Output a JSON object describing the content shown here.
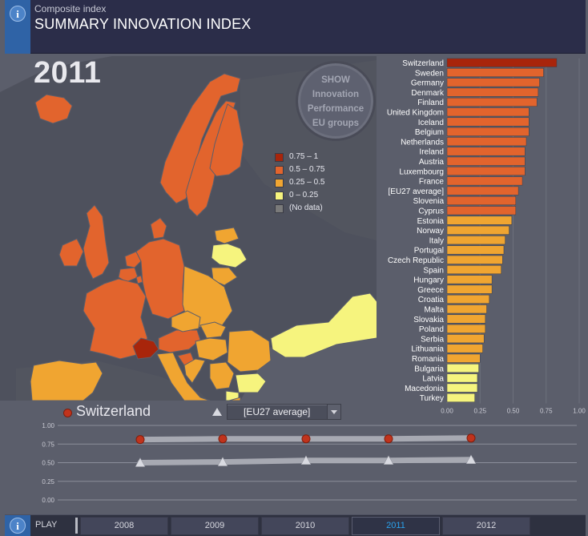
{
  "header": {
    "subtitle": "Composite index",
    "title": "SUMMARY INNOVATION INDEX"
  },
  "map": {
    "year": "2011",
    "show_button": [
      "SHOW",
      "Innovation",
      "Performance",
      "EU groups"
    ],
    "legend": [
      {
        "label": "0.75 – 1",
        "color": "#a8250b"
      },
      {
        "label": "0.5 – 0.75",
        "color": "#e2642d"
      },
      {
        "label": "0.25 – 0.5",
        "color": "#f0a531"
      },
      {
        "label": "0 – 0.25",
        "color": "#f6f47e"
      },
      {
        "label": "(No data)",
        "color": "#7a7a7a"
      }
    ],
    "country_colors": {
      "iceland": "#e2642d",
      "norway": "#e2642d",
      "sweden": "#e2642d",
      "finland": "#e2642d",
      "uk": "#e2642d",
      "ireland": "#e2642d",
      "denmark": "#e2642d",
      "netherlands": "#e2642d",
      "belgium": "#e2642d",
      "luxembourg": "#e2642d",
      "france": "#e2642d",
      "germany": "#e2642d",
      "austria": "#e2642d",
      "switzerland": "#a8250b",
      "estonia": "#f0a531",
      "latvia": "#f6f47e",
      "lithuania": "#f0a531",
      "poland": "#f0a531",
      "czech": "#f0a531",
      "slovakia": "#f0a531",
      "hungary": "#f0a531",
      "romania": "#f0a531",
      "bulgaria": "#f6f47e",
      "slovenia": "#e2642d",
      "croatia": "#f0a531",
      "serbia": "#f0a531",
      "macedonia": "#f6f47e",
      "greece": "#f0a531",
      "italy": "#f0a531",
      "spain": "#f0a531",
      "portugal": "#f0a531",
      "cyprus": "#e2642d",
      "malta": "#f0a531",
      "turkey": "#f6f47e"
    }
  },
  "chart_data": {
    "type": "bar",
    "orientation": "horizontal",
    "categories": [
      "Switzerland",
      "Sweden",
      "Germany",
      "Denmark",
      "Finland",
      "United Kingdom",
      "Iceland",
      "Belgium",
      "Netherlands",
      "Ireland",
      "Austria",
      "Luxembourg",
      "France",
      "[EU27 average]",
      "Slovenia",
      "Cyprus",
      "Estonia",
      "Norway",
      "Italy",
      "Portugal",
      "Czech Republic",
      "Spain",
      "Hungary",
      "Greece",
      "Croatia",
      "Malta",
      "Slovakia",
      "Poland",
      "Serbia",
      "Lithuania",
      "Romania",
      "Bulgaria",
      "Latvia",
      "Macedonia",
      "Turkey"
    ],
    "values": [
      0.83,
      0.73,
      0.7,
      0.69,
      0.68,
      0.62,
      0.62,
      0.62,
      0.6,
      0.59,
      0.59,
      0.59,
      0.57,
      0.54,
      0.52,
      0.52,
      0.49,
      0.47,
      0.44,
      0.43,
      0.42,
      0.41,
      0.34,
      0.34,
      0.32,
      0.3,
      0.29,
      0.29,
      0.28,
      0.27,
      0.25,
      0.24,
      0.23,
      0.23,
      0.21
    ],
    "colors": [
      "#a8250b",
      "#e2642d",
      "#e2642d",
      "#e2642d",
      "#e2642d",
      "#e2642d",
      "#e2642d",
      "#e2642d",
      "#e2642d",
      "#e2642d",
      "#e2642d",
      "#e2642d",
      "#e2642d",
      "#e2642d",
      "#e2642d",
      "#e2642d",
      "#f0a531",
      "#f0a531",
      "#f0a531",
      "#f0a531",
      "#f0a531",
      "#f0a531",
      "#f0a531",
      "#f0a531",
      "#f0a531",
      "#f0a531",
      "#f0a531",
      "#f0a531",
      "#f0a531",
      "#f0a531",
      "#f0a531",
      "#f6f47e",
      "#f6f47e",
      "#f6f47e",
      "#f6f47e"
    ],
    "xlim": [
      0,
      1
    ],
    "xticks": [
      "0.00",
      "0.25",
      "0.50",
      "0.75",
      "1.00"
    ],
    "xtick_values": [
      0,
      0.25,
      0.5,
      0.75,
      1
    ]
  },
  "selector": {
    "country": "Switzerland",
    "compare_label": "[EU27 average]"
  },
  "timeline_chart": {
    "type": "line",
    "years": [
      "2008",
      "2009",
      "2010",
      "2011",
      "2012"
    ],
    "ylim": [
      0,
      1
    ],
    "yticks": [
      "1.00",
      "0.75",
      "0.50",
      "0.25",
      "0.00"
    ],
    "ytick_values": [
      1,
      0.75,
      0.5,
      0.25,
      0
    ],
    "series": [
      {
        "name": "Switzerland",
        "values": [
          0.81,
          0.82,
          0.82,
          0.82,
          0.83
        ],
        "color": "#c0331c",
        "marker": "circle"
      },
      {
        "name": "[EU27 average]",
        "values": [
          0.5,
          0.51,
          0.53,
          0.53,
          0.54
        ],
        "color": "#d9dae1",
        "marker": "triangle"
      }
    ]
  },
  "footer": {
    "play_label": "PLAY",
    "years": [
      "2008",
      "2009",
      "2010",
      "2011",
      "2012"
    ],
    "active_year": "2011"
  }
}
